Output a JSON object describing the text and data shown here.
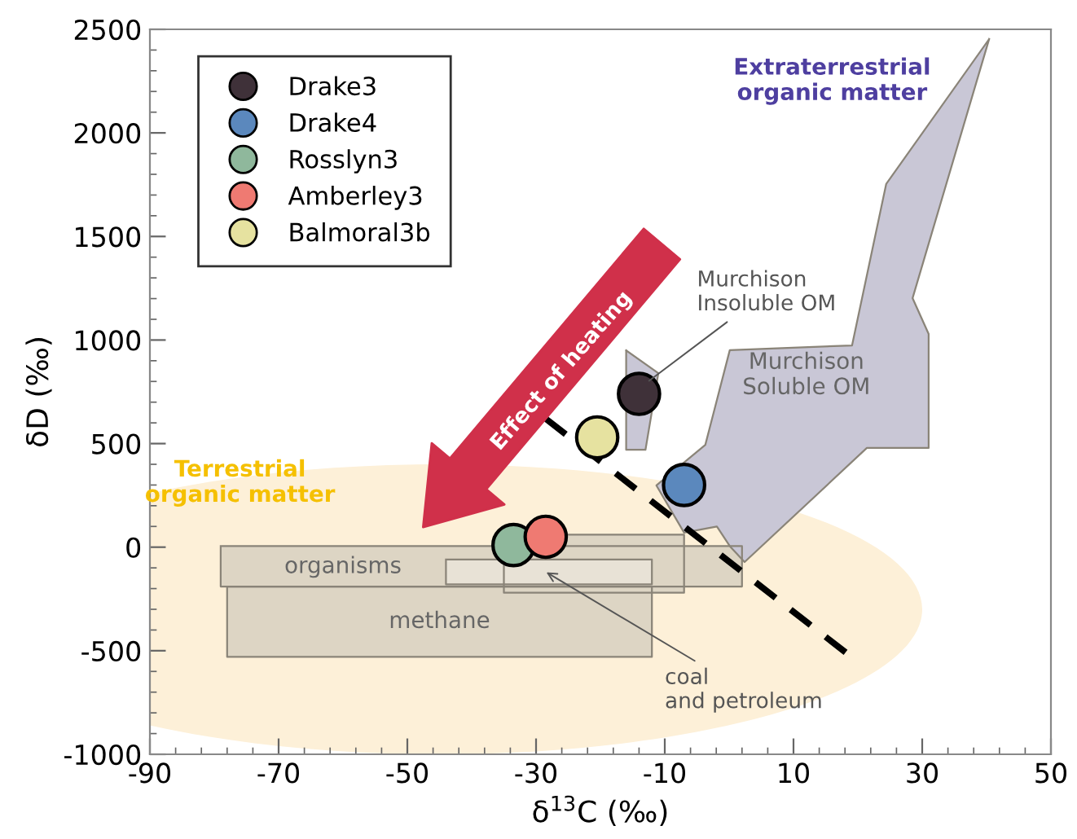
{
  "chart_data": {
    "type": "scatter",
    "xlabel": "δ$^{13}$C (‰)",
    "ylabel": "δD (‰)",
    "xlim": [
      -90,
      50
    ],
    "ylim": [
      -1000,
      2500
    ],
    "xticks": [
      -90,
      -70,
      -50,
      -30,
      -10,
      10,
      30,
      50
    ],
    "yticks": [
      -1000,
      -500,
      0,
      500,
      1000,
      1500,
      2000,
      2500
    ],
    "grid": false,
    "legend": "top left",
    "annotations": [
      "Terrestrial\norganic matter",
      "Extraterrestrial\norganic matter",
      "Effect of heating",
      "coal\nand petroleum",
      {
        "text": "Murchison\nInsoluble OM",
        "x": -13,
        "y": 790
      }
    ],
    "series": [
      {
        "type": "area",
        "name": "methane",
        "color": "#ddd5c4",
        "x": [
          -78,
          -12,
          -12,
          -78,
          -78
        ],
        "values": [
          -190,
          -190,
          -530,
          -530,
          -190
        ]
      },
      {
        "type": "area",
        "name": "organisms",
        "color": "#ddd5c4",
        "x": [
          -79,
          2,
          2,
          -79,
          -79
        ],
        "values": [
          5,
          5,
          -190,
          -190,
          5
        ]
      },
      {
        "type": "area",
        "color": "#ddd5c4",
        "x": [
          -35,
          -7,
          -7,
          -35,
          -35
        ],
        "values": [
          60,
          60,
          -220,
          -220,
          60
        ]
      },
      {
        "type": "area",
        "color": "#e8e2d6",
        "x": [
          -44,
          -12,
          -12,
          -44,
          -44
        ],
        "values": [
          -60,
          -60,
          -180,
          -180,
          -60
        ]
      },
      {
        "type": "area",
        "name": "Murchison\nSoluble OM",
        "color": "#c9c7d6",
        "x": [
          40.4,
          24.4,
          19.1,
          0.1,
          -3.7,
          -11.3,
          -7,
          -1.9,
          0.1,
          2.4,
          21.4,
          31,
          31,
          28.5,
          40.4
        ],
        "values": [
          2453,
          1753,
          974,
          951,
          494,
          298,
          70,
          100,
          5,
          -72,
          479,
          479,
          1029,
          1202,
          2453
        ]
      },
      {
        "type": "area",
        "color": "#c9c7d6",
        "x": [
          -16,
          -11,
          -13,
          -16,
          -16
        ],
        "values": [
          950,
          840,
          470,
          470,
          950
        ]
      },
      {
        "type": "line",
        "color": "#000000",
        "line_style": "dashed",
        "x": [
          -28.5,
          19
        ],
        "values": [
          620,
          -530
        ]
      },
      {
        "name": "Drake3",
        "color": "#3f3139",
        "marker": "circle",
        "x": [
          -14
        ],
        "values": [
          740
        ]
      },
      {
        "name": "Drake4",
        "color": "#5b88bd",
        "marker": "circle",
        "x": [
          -7
        ],
        "values": [
          300
        ]
      },
      {
        "name": "Rosslyn3",
        "color": "#8fb89c",
        "marker": "circle",
        "x": [
          -33.5
        ],
        "values": [
          10
        ]
      },
      {
        "name": "Amberley3",
        "color": "#ef7a72",
        "marker": "circle",
        "x": [
          -28.5
        ],
        "values": [
          50
        ]
      },
      {
        "name": "Balmoral3b",
        "color": "#e6e2a0",
        "marker": "circle",
        "x": [
          -20.5
        ],
        "values": [
          530
        ]
      }
    ]
  }
}
